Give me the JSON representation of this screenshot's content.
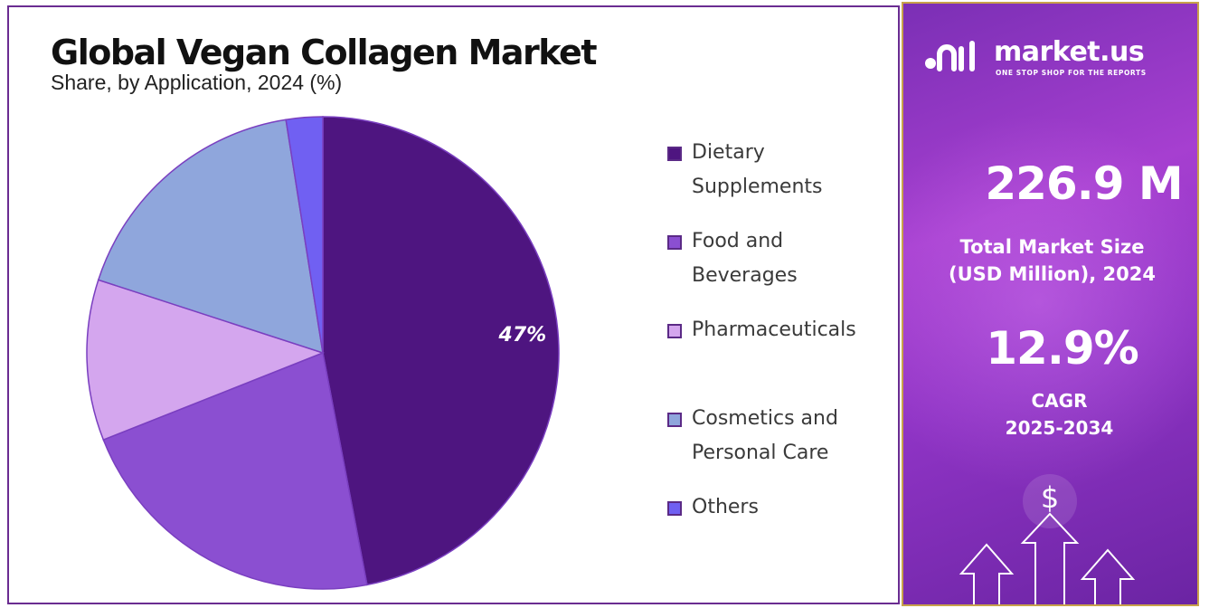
{
  "chart_data": {
    "type": "pie",
    "title": "Global Vegan Collagen Market",
    "subtitle": "Share, by Application, 2024 (%)",
    "categories": [
      "Dietary Supplements",
      "Food and Beverages",
      "Pharmaceuticals",
      "Cosmetics and Personal Care",
      "Others"
    ],
    "values": [
      47,
      22,
      11,
      17.5,
      2.5
    ],
    "data_labels": [
      "47%",
      "",
      "",
      "",
      ""
    ],
    "legend_labels": [
      [
        "Dietary",
        "Supplements"
      ],
      [
        "Food and",
        "Beverages"
      ],
      [
        "Pharmaceuticals"
      ],
      [
        "Cosmetics and",
        "Personal Care"
      ],
      [
        "Others"
      ]
    ],
    "colors": [
      "#4e1580",
      "#8b4fd1",
      "#d4a6ee",
      "#8fa6dc",
      "#7060f2"
    ],
    "legend_placement": "right"
  },
  "side_panel": {
    "brand_name": "market.us",
    "brand_tagline": "ONE STOP SHOP FOR THE REPORTS",
    "market_size_value": "226.9 M",
    "market_size_label_line1": "Total Market Size",
    "market_size_label_line2": "(USD Million), 2024",
    "cagr_value": "12.9%",
    "cagr_label_line1": "CAGR",
    "cagr_label_line2": "2025-2034",
    "dollar_symbol": "$",
    "icons": [
      "market-us-logo-icon",
      "dollar-coin-icon",
      "growth-arrows-icon"
    ]
  }
}
